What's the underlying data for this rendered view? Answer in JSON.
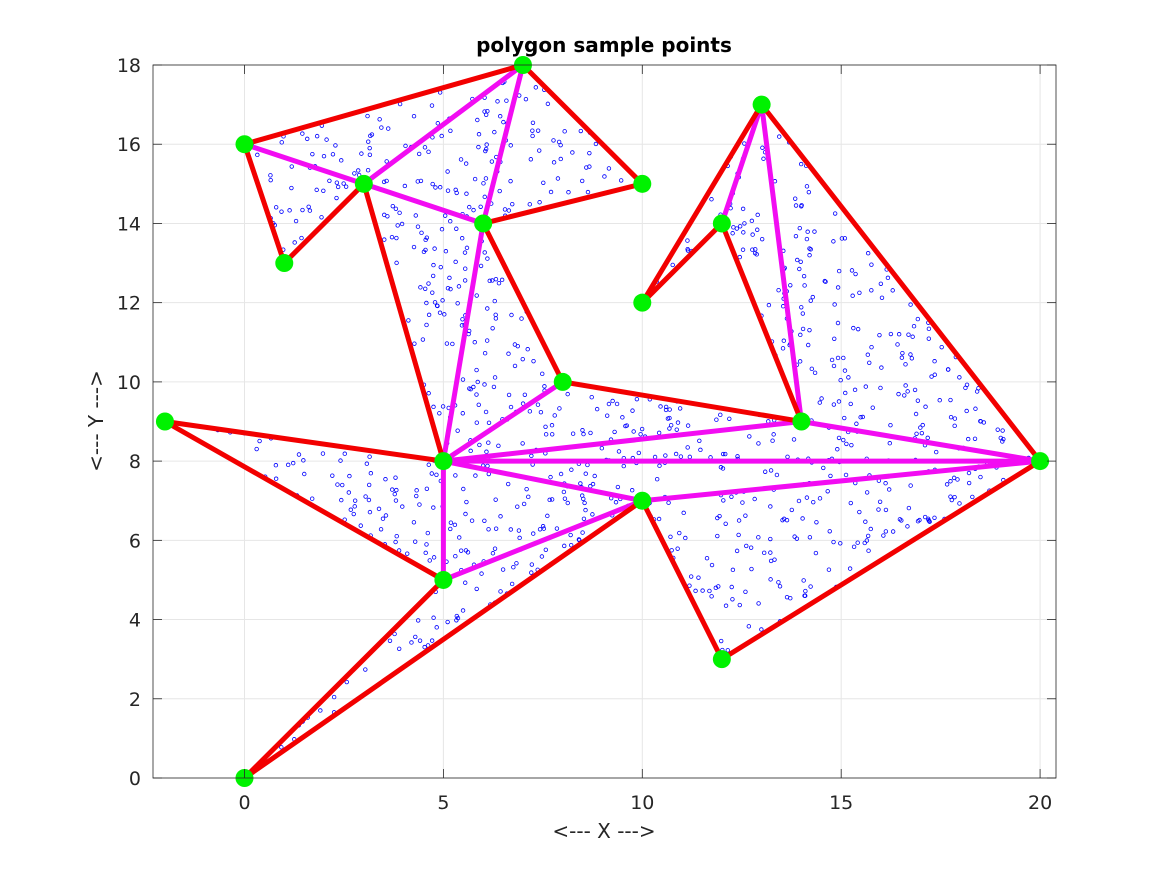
{
  "chart_data": {
    "type": "scatter",
    "title": "polygon sample points",
    "xlabel": "<--- X --->",
    "ylabel": "<--- Y --->",
    "xlim": [
      -2.3,
      20.4
    ],
    "ylim": [
      0,
      18
    ],
    "xticks": [
      0,
      5,
      10,
      15,
      20
    ],
    "xtick_labels": [
      "0",
      "5",
      "10",
      "15",
      "20"
    ],
    "yticks": [
      0,
      2,
      4,
      6,
      8,
      10,
      12,
      14,
      16,
      18
    ],
    "ytick_labels": [
      "0",
      "2",
      "4",
      "6",
      "8",
      "10",
      "12",
      "14",
      "16",
      "18"
    ],
    "grid": true,
    "vertices": [
      [
        0,
        16
      ],
      [
        1,
        13
      ],
      [
        3,
        15
      ],
      [
        7,
        18
      ],
      [
        10,
        15
      ],
      [
        6,
        14
      ],
      [
        8,
        10
      ],
      [
        14,
        9
      ],
      [
        13,
        17
      ],
      [
        12,
        14
      ],
      [
        10,
        12
      ],
      [
        20,
        8
      ],
      [
        12,
        3
      ],
      [
        10,
        7
      ],
      [
        0,
        0
      ],
      [
        5,
        5
      ],
      [
        -2,
        9
      ],
      [
        5,
        8
      ]
    ],
    "boundary_edges": [
      [
        0,
        16,
        1,
        13
      ],
      [
        1,
        13,
        3,
        15
      ],
      [
        3,
        15,
        5,
        8
      ],
      [
        0,
        16,
        7,
        18
      ],
      [
        7,
        18,
        10,
        15
      ],
      [
        10,
        15,
        6,
        14
      ],
      [
        6,
        14,
        8,
        10
      ],
      [
        8,
        10,
        14,
        9
      ],
      [
        14,
        9,
        12,
        14
      ],
      [
        12,
        14,
        10,
        12
      ],
      [
        10,
        12,
        13,
        17
      ],
      [
        13,
        17,
        20,
        8
      ],
      [
        20,
        8,
        12,
        3
      ],
      [
        12,
        3,
        10,
        7
      ],
      [
        10,
        7,
        0,
        0
      ],
      [
        0,
        0,
        5,
        5
      ],
      [
        5,
        5,
        -2,
        9
      ],
      [
        -2,
        9,
        5,
        8
      ]
    ],
    "interior_edges": [
      [
        0,
        16,
        3,
        15
      ],
      [
        3,
        15,
        7,
        18
      ],
      [
        3,
        15,
        6,
        14
      ],
      [
        7,
        18,
        6,
        14
      ],
      [
        6,
        14,
        5,
        8
      ],
      [
        5,
        8,
        8,
        10
      ],
      [
        13,
        17,
        12,
        14
      ],
      [
        13,
        17,
        14,
        9
      ],
      [
        14,
        9,
        20,
        8
      ],
      [
        5,
        8,
        14,
        9
      ],
      [
        5,
        8,
        20,
        8
      ],
      [
        5,
        8,
        10,
        7
      ],
      [
        10,
        7,
        20,
        8
      ],
      [
        5,
        8,
        5,
        5
      ],
      [
        5,
        5,
        10,
        7
      ]
    ],
    "triangles": [
      [
        0,
        16,
        1,
        13,
        3,
        15
      ],
      [
        0,
        16,
        3,
        15,
        7,
        18
      ],
      [
        3,
        15,
        6,
        14,
        7,
        18
      ],
      [
        7,
        18,
        6,
        14,
        10,
        15
      ],
      [
        3,
        15,
        5,
        8,
        6,
        14
      ],
      [
        6,
        14,
        5,
        8,
        8,
        10
      ],
      [
        5,
        8,
        8,
        10,
        14,
        9
      ],
      [
        5,
        8,
        14,
        9,
        20,
        8
      ],
      [
        5,
        8,
        20,
        8,
        10,
        7
      ],
      [
        10,
        7,
        20,
        8,
        12,
        3
      ],
      [
        5,
        8,
        10,
        7,
        5,
        5
      ],
      [
        5,
        5,
        10,
        7,
        0,
        0
      ],
      [
        -2,
        9,
        5,
        8,
        5,
        5
      ],
      [
        13,
        17,
        12,
        14,
        14,
        9
      ],
      [
        13,
        17,
        14,
        9,
        20,
        8
      ],
      [
        10,
        12,
        13,
        17,
        12,
        14
      ]
    ],
    "sample_point_count": 1000,
    "colors": {
      "boundary": "#f20000",
      "interior": "#f20cf2",
      "vertex": "#00f200",
      "samples": "#0000ff",
      "grid": "#e6e6e6",
      "axis": "#262626"
    }
  }
}
